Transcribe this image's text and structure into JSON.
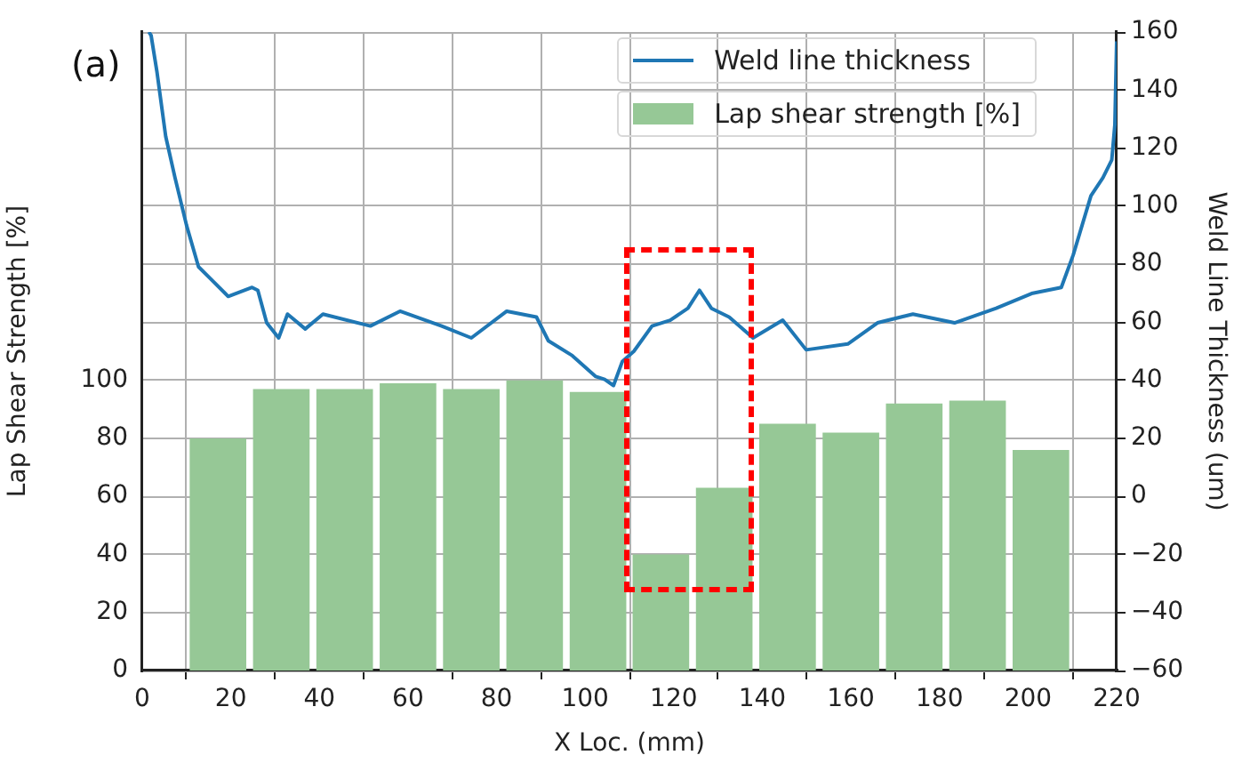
{
  "chart_data": {
    "type": "bar",
    "xlabel": "X Loc. (mm)",
    "ylabel": "Lap Shear Strength [%]",
    "y2label": "Weld Line Thickness (um)",
    "annotations": [
      "(a)"
    ],
    "xlim": [
      0,
      220
    ],
    "xticks": [
      0,
      20,
      40,
      60,
      80,
      100,
      120,
      140,
      160,
      180,
      200,
      220
    ],
    "ylim": [
      0,
      220
    ],
    "yticks": [
      0,
      20,
      40,
      60,
      80,
      100
    ],
    "y2lim": [
      -60,
      160
    ],
    "y2ticks": [
      {
        "value": -60,
        "label": "−60"
      },
      {
        "value": -40,
        "label": "−40"
      },
      {
        "value": -20,
        "label": "−20"
      },
      0,
      20,
      40,
      60,
      80,
      100,
      120,
      140,
      160
    ],
    "grid": true,
    "legend": "top right",
    "series": [
      {
        "name": "Weld line thickness",
        "type": "line",
        "axis": "y2",
        "color": "#1f77b4",
        "x": [
          1.5,
          2,
          3.3,
          5.3,
          7.4,
          10,
          12.7,
          15.4,
          19.4,
          24.8,
          26.1,
          28.1,
          30.8,
          32.8,
          36.8,
          40.8,
          51.5,
          58.2,
          67.6,
          74.3,
          82.3,
          89,
          91.7,
          97.1,
          102.4,
          104.4,
          106.4,
          108.4,
          111,
          115.1,
          119.2,
          123.2,
          125.8,
          128.5,
          132.5,
          137.9,
          144.6,
          149.9,
          159.3,
          166,
          174,
          183.4,
          192.8,
          200.8,
          207.5,
          210.2,
          214.2,
          216.9,
          218.9,
          219.6,
          220
        ],
        "values": [
          160,
          158.8,
          146.5,
          124,
          109.8,
          93.4,
          79.1,
          75,
          68.9,
          72,
          71,
          59.8,
          54.6,
          62.8,
          57.7,
          62.8,
          58.7,
          63.8,
          58.7,
          54.6,
          63.8,
          61.8,
          53.6,
          48.5,
          41.3,
          40.3,
          38.2,
          46.5,
          50,
          58.7,
          60.7,
          64.8,
          71,
          64.8,
          61.8,
          54.6,
          60.7,
          50.5,
          52.5,
          59.8,
          62.8,
          59.8,
          64.8,
          69.9,
          72,
          83.2,
          103.6,
          109.8,
          115.9,
          128.1,
          156.8
        ]
      },
      {
        "name": "Lap shear strength [%]",
        "axis": "y",
        "color": "#96c896",
        "x": [
          17.1,
          31.4,
          45.7,
          60,
          74.3,
          88.6,
          102.9,
          117.1,
          131.4,
          145.7,
          160,
          174.3,
          188.6,
          202.9
        ],
        "values": [
          80,
          97,
          97,
          99,
          97,
          100,
          96,
          40,
          63,
          85,
          82,
          92,
          93,
          76
        ]
      }
    ]
  }
}
